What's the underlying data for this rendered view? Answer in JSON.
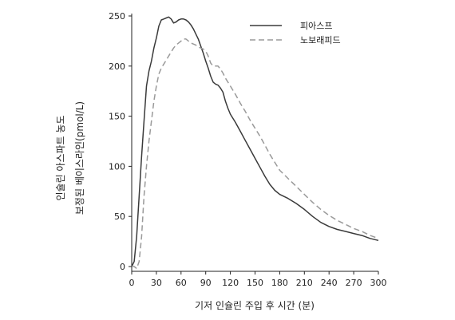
{
  "chart_data": {
    "type": "line",
    "title": "",
    "xlabel": "기저 인슐린 주입 후 시간 (분)",
    "ylabel_line1": "인슐린 아스파트 농도",
    "ylabel_line2": "보정된 베이스라인(pmol/L)",
    "xlim": [
      0,
      300
    ],
    "ylim": [
      0,
      250
    ],
    "xticks": [
      0,
      30,
      60,
      90,
      120,
      150,
      180,
      210,
      240,
      270,
      300
    ],
    "yticks": [
      0,
      50,
      100,
      150,
      200,
      250
    ],
    "xtick_labels": [
      "0",
      "30",
      "60",
      "90",
      "120",
      "150",
      "180",
      "210",
      "240",
      "270",
      "300"
    ],
    "ytick_labels": [
      "0",
      "50",
      "100",
      "150",
      "200",
      "250"
    ],
    "grid": false,
    "legend_position": "top-right",
    "colors": {
      "series_1": "#3a3a3a",
      "series_2": "#9a9a9a",
      "axis": "#222222"
    },
    "series": [
      {
        "name": "피아스프",
        "style": "solid",
        "x": [
          0,
          3,
          6,
          9,
          12,
          15,
          18,
          21,
          24,
          27,
          30,
          33,
          36,
          39,
          42,
          45,
          48,
          51,
          54,
          57,
          60,
          63,
          66,
          69,
          72,
          75,
          78,
          81,
          84,
          87,
          90,
          93,
          96,
          99,
          102,
          105,
          108,
          111,
          114,
          117,
          120,
          126,
          132,
          138,
          144,
          150,
          156,
          162,
          168,
          174,
          180,
          190,
          200,
          210,
          220,
          230,
          240,
          250,
          260,
          270,
          280,
          290,
          300
        ],
        "y": [
          0,
          5,
          30,
          70,
          110,
          145,
          180,
          195,
          205,
          218,
          228,
          240,
          246,
          247,
          248,
          249,
          247,
          243,
          244,
          246,
          247,
          247,
          246,
          244,
          241,
          237,
          232,
          227,
          220,
          213,
          205,
          198,
          190,
          184,
          182,
          181,
          178,
          174,
          165,
          158,
          152,
          144,
          135,
          126,
          117,
          108,
          99,
          90,
          82,
          76,
          72,
          68,
          63,
          57,
          50,
          44,
          40,
          37,
          35,
          33,
          31,
          28,
          26
        ]
      },
      {
        "name": "노보래피드",
        "style": "dashed",
        "x": [
          0,
          3,
          6,
          9,
          12,
          15,
          18,
          21,
          24,
          27,
          30,
          33,
          36,
          39,
          42,
          45,
          48,
          51,
          54,
          57,
          60,
          63,
          66,
          69,
          72,
          75,
          78,
          81,
          84,
          87,
          90,
          93,
          96,
          99,
          102,
          105,
          108,
          111,
          114,
          117,
          120,
          126,
          132,
          138,
          144,
          150,
          156,
          162,
          168,
          174,
          180,
          190,
          200,
          210,
          220,
          230,
          240,
          250,
          260,
          270,
          280,
          290,
          300
        ],
        "y": [
          0,
          0,
          -2,
          5,
          30,
          70,
          100,
          125,
          145,
          165,
          180,
          192,
          198,
          202,
          206,
          210,
          214,
          218,
          221,
          223,
          225,
          227,
          227,
          225,
          223,
          222,
          221,
          219,
          218,
          217,
          215,
          210,
          203,
          200,
          200,
          200,
          197,
          193,
          188,
          184,
          180,
          172,
          163,
          155,
          146,
          138,
          130,
          121,
          112,
          104,
          96,
          88,
          80,
          72,
          64,
          57,
          51,
          46,
          42,
          38,
          35,
          31,
          28
        ]
      }
    ]
  }
}
